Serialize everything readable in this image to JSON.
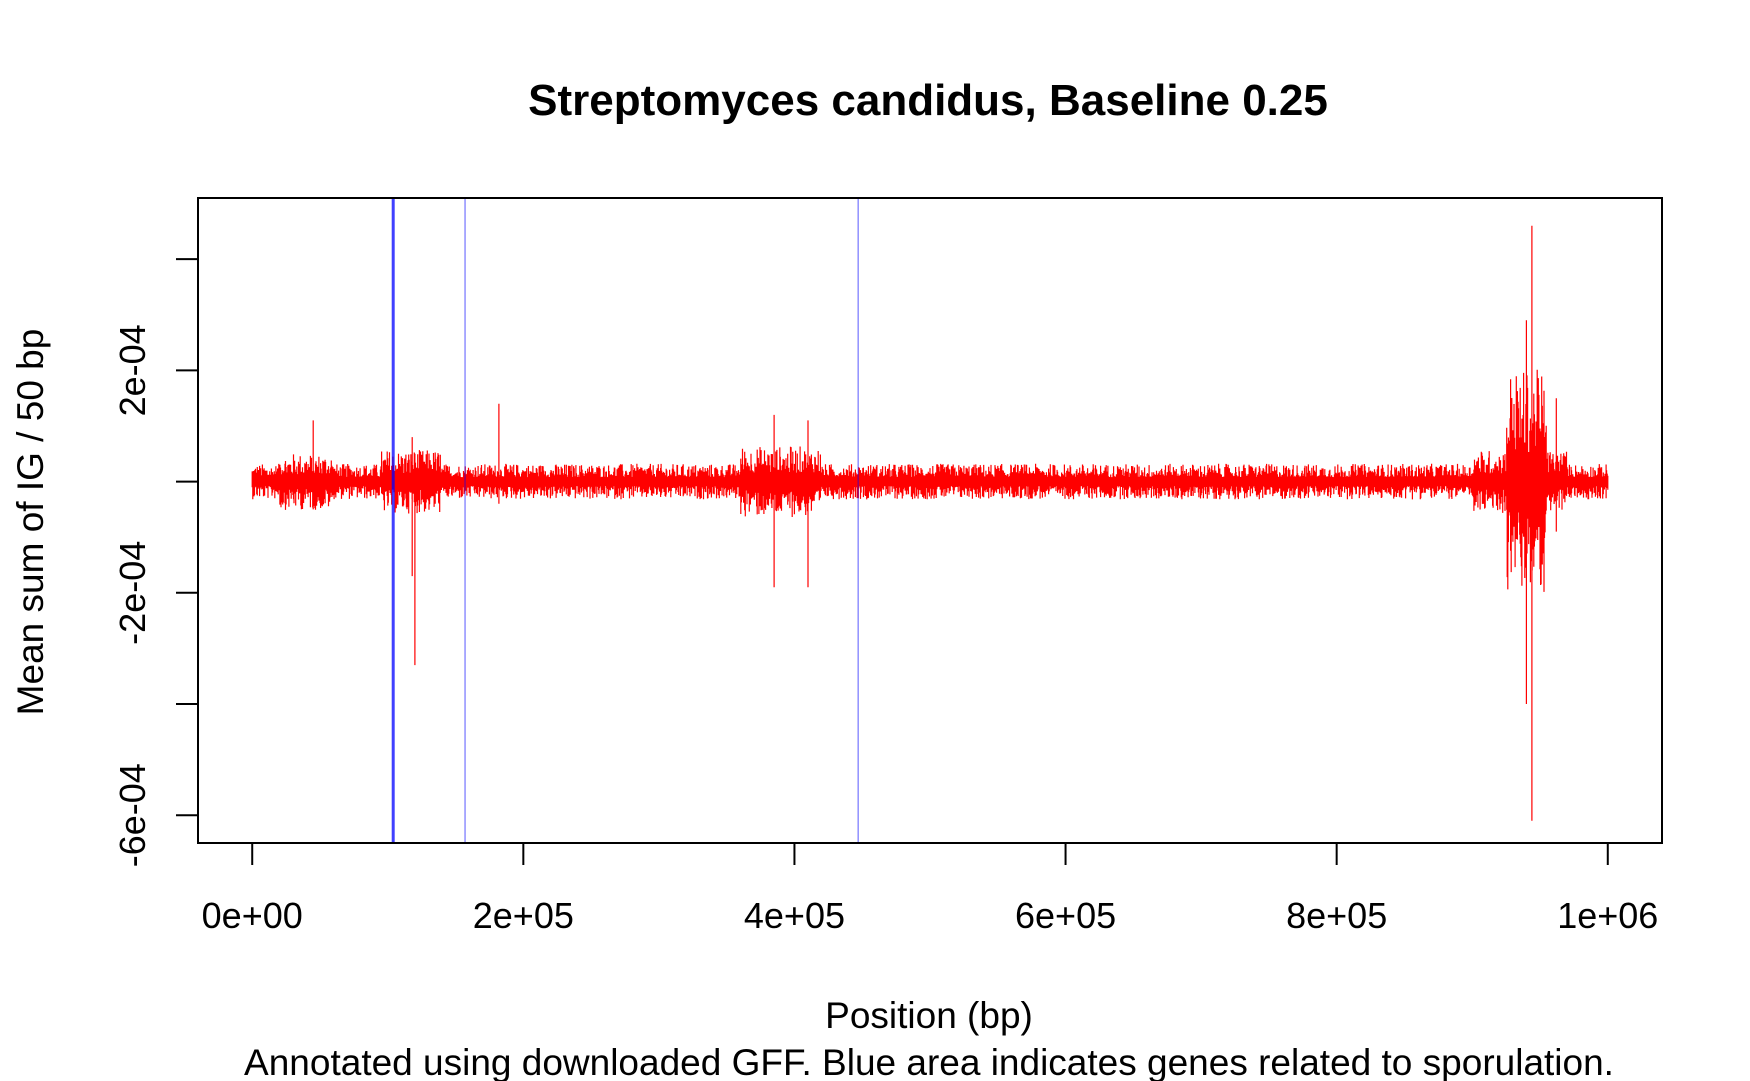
{
  "chart_data": {
    "type": "line",
    "title": "Streptomyces candidus, Baseline 0.25",
    "xlabel": "Position (bp)",
    "ylabel": "Mean sum of IG / 50 bp",
    "subtitle": "Annotated using downloaded GFF. Blue area indicates genes related to sporulation.",
    "xlim": [
      -40000,
      1040000
    ],
    "ylim": [
      -0.00065,
      0.00051
    ],
    "x_ticks": [
      0,
      200000,
      400000,
      600000,
      800000,
      1000000
    ],
    "x_tick_labels": [
      "0e+00",
      "2e+05",
      "4e+05",
      "6e+05",
      "8e+05",
      "1e+06"
    ],
    "y_ticks": [
      -0.0006,
      -0.0004,
      -0.0002,
      0,
      0.0002,
      0.0004
    ],
    "y_tick_labels": [
      "-6e-04",
      "",
      "-2e-04",
      "",
      "2e-04",
      ""
    ],
    "grid": false,
    "series": [
      {
        "color": "#ff0000",
        "x_range": [
          0,
          1000000
        ],
        "baseline": 0,
        "typical_amplitude": 2e-05,
        "notable_extremes": [
          {
            "x": 45000,
            "max": 0.00011,
            "min": -5e-05
          },
          {
            "x": 118000,
            "max": 8e-05,
            "min": -0.00017
          },
          {
            "x": 120000,
            "max": 5e-05,
            "min": -0.00033
          },
          {
            "x": 182000,
            "max": 0.00014,
            "min": -4e-05
          },
          {
            "x": 385000,
            "max": 0.00012,
            "min": -0.00019
          },
          {
            "x": 410000,
            "max": 0.00011,
            "min": -0.00019
          },
          {
            "x": 940000,
            "max": 0.00029,
            "min": -0.0004
          },
          {
            "x": 944000,
            "max": 0.00046,
            "min": -0.00061
          },
          {
            "x": 962000,
            "max": 0.00015,
            "min": -9e-05
          }
        ]
      }
    ],
    "highlight_lines": [
      {
        "x": 104000,
        "color": "#0000ff"
      },
      {
        "x": 157000,
        "color": "#0000ff"
      },
      {
        "x": 447000,
        "color": "#0000ff"
      }
    ]
  }
}
